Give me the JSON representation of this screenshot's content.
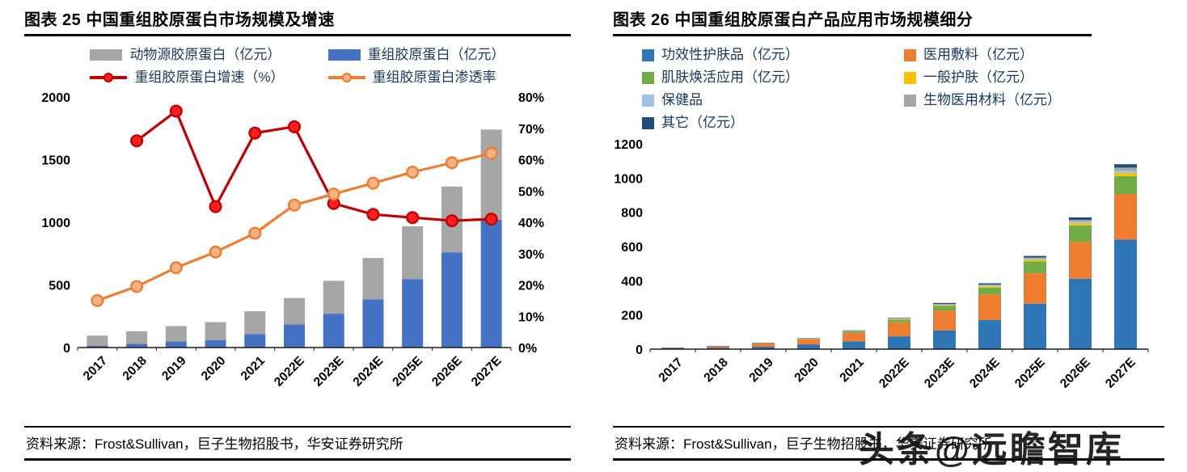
{
  "watermark": "头条@远瞻智库",
  "panels": {
    "left": {
      "title": "图表 25 中国重组胶原蛋白市场规模及增速",
      "source": "资料来源：Frost&Sullivan，巨子生物招股书，华安证券研究所"
    },
    "right": {
      "title": "图表 26 中国重组胶原蛋白产品应用市场规模细分",
      "source": "资料来源：Frost&Sullivan，巨子生物招股书，华安证券研究所"
    }
  },
  "chart_data": [
    {
      "id": "china-recombinant-collagen-market-size-growth",
      "type": "bar",
      "subtype": "stacked-bar-with-dual-axis-lines",
      "categories": [
        "2017",
        "2018",
        "2019",
        "2020",
        "2021",
        "2022E",
        "2023E",
        "2024E",
        "2025E",
        "2026E",
        "2027E"
      ],
      "left_axis": {
        "min": 0,
        "max": 2000,
        "step": 500
      },
      "right_axis": {
        "min": 0,
        "max": 80,
        "step": 10,
        "suffix": "%"
      },
      "legend_order": [
        1,
        0,
        2,
        3
      ],
      "legend_swatch": "bar",
      "grid": false,
      "series": [
        {
          "name": "重组胶原蛋白（亿元）",
          "type": "bar",
          "color": "#4472C4",
          "values": [
            15,
            30,
            48,
            58,
            108,
            185,
            270,
            385,
            545,
            760,
            1020
          ]
        },
        {
          "name": "动物源胶原蛋白（亿元）",
          "type": "bar",
          "color": "#A6A6A6",
          "values": [
            80,
            100,
            123,
            145,
            182,
            210,
            263,
            330,
            423,
            525,
            720
          ]
        },
        {
          "name": "重组胶原蛋白增速（%）",
          "type": "line",
          "axis": "right",
          "color": "#C00000",
          "marker_fill": "#FF1F1F",
          "values": [
            null,
            66,
            75.5,
            45,
            68.5,
            70.5,
            46,
            42.5,
            41.5,
            40.5,
            41
          ]
        },
        {
          "name": "重组胶原蛋白渗透率",
          "type": "line",
          "axis": "right",
          "color": "#ED7D31",
          "marker_fill": "#F4B183",
          "values": [
            15,
            19.5,
            25.5,
            30.5,
            36.5,
            45.5,
            49,
            52.5,
            56,
            59,
            62
          ]
        }
      ]
    },
    {
      "id": "china-recombinant-collagen-application-segmentation",
      "type": "bar",
      "subtype": "stacked-bar",
      "categories": [
        "2017",
        "2018",
        "2019",
        "2020",
        "2021",
        "2022E",
        "2023E",
        "2024E",
        "2025E",
        "2026E",
        "2027E"
      ],
      "left_axis": {
        "min": 0,
        "max": 1200,
        "step": 200
      },
      "legend_swatch": "square",
      "grid": false,
      "series": [
        {
          "name": "功效性护肤品（亿元）",
          "type": "bar",
          "color": "#2E75B6",
          "values": [
            4,
            7,
            14,
            28,
            45,
            75,
            110,
            170,
            266,
            412,
            641
          ]
        },
        {
          "name": "医用敷料（亿元）",
          "type": "bar",
          "color": "#ED7D31",
          "values": [
            4,
            9,
            19,
            30,
            51,
            82,
            115,
            150,
            178,
            216,
            266
          ]
        },
        {
          "name": "肌肤焕活应用（亿元）",
          "type": "bar",
          "color": "#70AD47",
          "values": [
            0.5,
            1,
            2,
            3,
            8,
            16,
            28,
            40,
            69,
            96,
            105
          ]
        },
        {
          "name": "一般护肤（亿元）",
          "type": "bar",
          "color": "#FFC000",
          "values": [
            0.3,
            0.4,
            0.8,
            1.2,
            2,
            3,
            4,
            7,
            9,
            12,
            18
          ]
        },
        {
          "name": "保健品",
          "type": "bar",
          "color": "#9DC3E6",
          "values": [
            0.1,
            0.2,
            0.4,
            0.6,
            1,
            2,
            3,
            5,
            6,
            9,
            14
          ]
        },
        {
          "name": "生物医用材料（亿元）",
          "type": "bar",
          "color": "#A6A6A6",
          "values": [
            0.1,
            0.2,
            0.4,
            0.6,
            1,
            2,
            4,
            6,
            8,
            11,
            17
          ]
        },
        {
          "name": "其它（亿元）",
          "type": "bar",
          "color": "#1F4E79",
          "values": [
            0.2,
            0.4,
            0.6,
            1,
            2,
            3,
            6,
            7,
            9,
            14,
            20
          ]
        }
      ]
    }
  ]
}
